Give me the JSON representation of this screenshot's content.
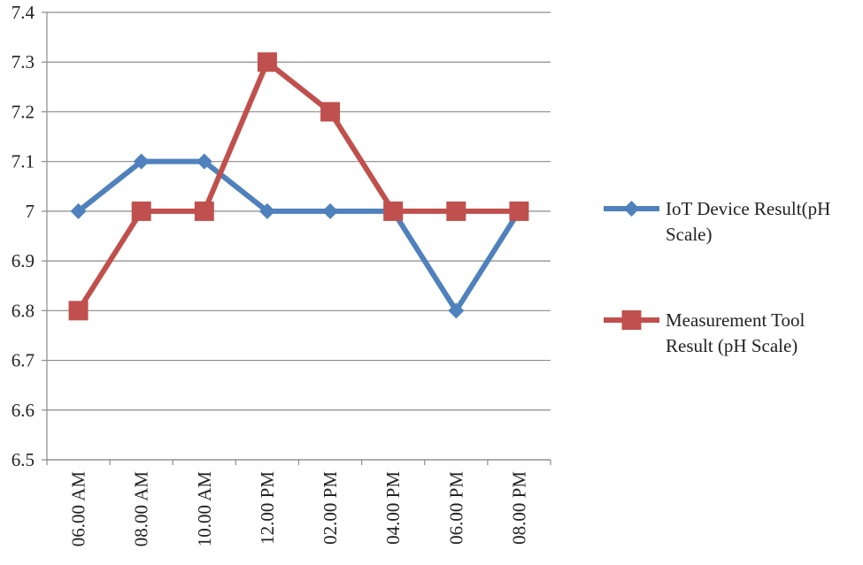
{
  "chart_data": {
    "type": "line",
    "title": "",
    "xlabel": "",
    "ylabel": "",
    "categories": [
      "06.00 AM",
      "08.00 AM",
      "10.00 AM",
      "12.00 PM",
      "02.00 PM",
      "04.00 PM",
      "06.00 PM",
      "08.00 PM"
    ],
    "ylim": [
      6.5,
      7.4
    ],
    "yticks": [
      "6.5",
      "6.6",
      "6.7",
      "6.8",
      "6.9",
      "7",
      "7.1",
      "7.2",
      "7.3",
      "7.4"
    ],
    "grid": true,
    "legend_position": "right",
    "series": [
      {
        "name_lines": [
          "IoT Device Result(pH",
          "Scale)"
        ],
        "color": "#4f81bd",
        "marker": "diamond",
        "values": [
          7.0,
          7.1,
          7.1,
          7.0,
          7.0,
          7.0,
          6.8,
          7.0
        ]
      },
      {
        "name_lines": [
          "Measurement Tool",
          "Result (pH Scale)"
        ],
        "color": "#c0504d",
        "marker": "square",
        "values": [
          6.8,
          7.0,
          7.0,
          7.3,
          7.2,
          7.0,
          7.0,
          7.0
        ]
      }
    ]
  }
}
